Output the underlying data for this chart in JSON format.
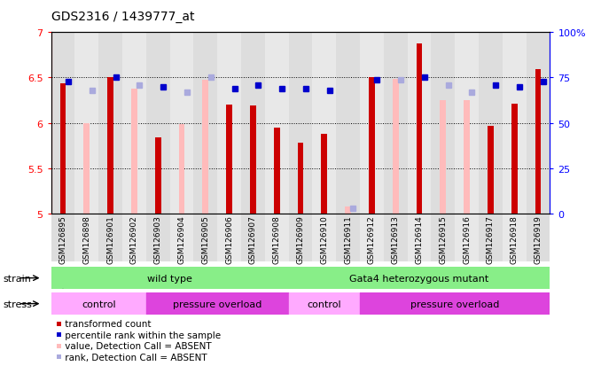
{
  "title": "GDS2316 / 1439777_at",
  "samples": [
    "GSM126895",
    "GSM126898",
    "GSM126901",
    "GSM126902",
    "GSM126903",
    "GSM126904",
    "GSM126905",
    "GSM126906",
    "GSM126907",
    "GSM126908",
    "GSM126909",
    "GSM126910",
    "GSM126911",
    "GSM126912",
    "GSM126913",
    "GSM126914",
    "GSM126915",
    "GSM126916",
    "GSM126917",
    "GSM126918",
    "GSM126919"
  ],
  "values": [
    6.44,
    6.0,
    6.5,
    6.38,
    5.84,
    5.99,
    6.48,
    6.2,
    6.19,
    5.95,
    5.78,
    5.88,
    5.08,
    6.5,
    6.49,
    6.88,
    6.25,
    6.25,
    5.97,
    6.21,
    6.59
  ],
  "ranks": [
    73,
    68,
    75,
    71,
    70,
    67,
    75,
    69,
    71,
    69,
    69,
    68,
    3,
    74,
    74,
    75,
    71,
    67,
    71,
    70,
    73
  ],
  "absent": [
    false,
    true,
    false,
    true,
    false,
    true,
    true,
    false,
    false,
    false,
    false,
    false,
    true,
    false,
    true,
    false,
    true,
    true,
    false,
    false,
    false
  ],
  "ylim_left": [
    5,
    7
  ],
  "ylim_right": [
    0,
    100
  ],
  "yticks_left": [
    5,
    5.5,
    6,
    6.5,
    7
  ],
  "yticks_right": [
    0,
    25,
    50,
    75,
    100
  ],
  "bar_color": "#cc0000",
  "bar_color_absent": "#ffbbbb",
  "rank_color": "#0000cc",
  "rank_color_absent": "#aaaadd",
  "strain_labels": [
    "wild type",
    "Gata4 heterozygous mutant"
  ],
  "strain_ranges": [
    [
      0,
      10
    ],
    [
      10,
      21
    ]
  ],
  "strain_color": "#88ee88",
  "stress_labels": [
    "control",
    "pressure overload",
    "control",
    "pressure overload"
  ],
  "stress_ranges": [
    [
      0,
      4
    ],
    [
      4,
      10
    ],
    [
      10,
      13
    ],
    [
      13,
      21
    ]
  ],
  "stress_color_control": "#ffaaff",
  "stress_color_overload": "#dd44dd",
  "legend_items": [
    {
      "label": "transformed count",
      "color": "#cc0000"
    },
    {
      "label": "percentile rank within the sample",
      "color": "#0000cc"
    },
    {
      "label": "value, Detection Call = ABSENT",
      "color": "#ffbbbb"
    },
    {
      "label": "rank, Detection Call = ABSENT",
      "color": "#aaaadd"
    }
  ],
  "bg_even": "#dddddd",
  "bg_odd": "#e8e8e8"
}
